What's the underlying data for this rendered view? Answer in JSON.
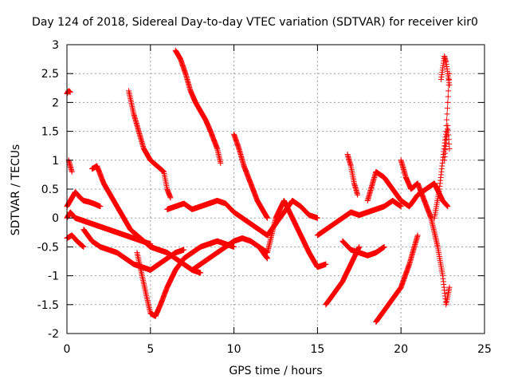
{
  "chart_data": {
    "type": "scatter",
    "title": "Day 124 of 2018, Sidereal Day-to-day VTEC variation (SDTVAR) for receiver kir0",
    "xlabel": "GPS time / hours",
    "ylabel": "SDTVAR / TECUs",
    "xlim": [
      0,
      25
    ],
    "ylim": [
      -2,
      3
    ],
    "xticks": [
      0,
      5,
      10,
      15,
      20,
      25
    ],
    "yticks": [
      -2,
      -1.5,
      -1,
      -0.5,
      0,
      0.5,
      1,
      1.5,
      2,
      2.5,
      3
    ],
    "grid": true,
    "marker": "plus",
    "color": "#ff0000",
    "series": [
      {
        "x": [
          0.0,
          0.1,
          0.2
        ],
        "values": [
          2.15,
          2.2,
          2.18
        ]
      },
      {
        "x": [
          0.0,
          0.2,
          0.5,
          0.8,
          1.0,
          1.3,
          1.6,
          2.0
        ],
        "values": [
          0.2,
          0.3,
          0.45,
          0.35,
          0.3,
          0.28,
          0.25,
          0.2
        ]
      },
      {
        "x": [
          0.0,
          0.3,
          0.6,
          1.0
        ],
        "values": [
          -0.35,
          -0.3,
          -0.4,
          -0.5
        ]
      },
      {
        "x": [
          0.0,
          0.2,
          0.5,
          1.0,
          1.5,
          2.0,
          2.5,
          3.0,
          3.5,
          4.0,
          4.5,
          5.0
        ],
        "values": [
          0.0,
          0.1,
          0.0,
          -0.05,
          -0.1,
          -0.15,
          -0.2,
          -0.25,
          -0.3,
          -0.35,
          -0.4,
          -0.45
        ]
      },
      {
        "x": [
          0.1,
          0.2,
          0.3
        ],
        "values": [
          1.0,
          0.9,
          0.8
        ]
      },
      {
        "x": [
          1.5,
          1.8,
          2.2,
          2.6,
          3.0,
          3.4,
          3.8,
          4.2,
          4.6,
          5.0,
          5.5,
          6.0,
          6.5,
          7.0,
          7.5,
          8.0
        ],
        "values": [
          0.85,
          0.9,
          0.6,
          0.4,
          0.2,
          0.0,
          -0.2,
          -0.3,
          -0.4,
          -0.5,
          -0.55,
          -0.6,
          -0.7,
          -0.8,
          -0.9,
          -0.95
        ]
      },
      {
        "x": [
          1.0,
          1.5,
          2.0,
          2.5,
          3.0,
          3.5,
          4.0,
          4.5,
          5.0,
          5.5,
          6.0,
          6.5,
          7.0
        ],
        "values": [
          -0.2,
          -0.4,
          -0.5,
          -0.55,
          -0.6,
          -0.7,
          -0.8,
          -0.85,
          -0.9,
          -0.8,
          -0.7,
          -0.6,
          -0.55
        ]
      },
      {
        "x": [
          3.7,
          4.0,
          4.3,
          4.6,
          5.0,
          5.4,
          5.8,
          6.0,
          6.2
        ],
        "values": [
          2.2,
          1.8,
          1.5,
          1.2,
          1.0,
          0.9,
          0.8,
          0.5,
          0.35
        ]
      },
      {
        "x": [
          4.2,
          4.5,
          4.8,
          5.0,
          5.3,
          5.6,
          6.0,
          6.5,
          7.0,
          7.5,
          8.0,
          8.5,
          9.0,
          9.5,
          10.0
        ],
        "values": [
          -0.6,
          -1.0,
          -1.4,
          -1.65,
          -1.7,
          -1.5,
          -1.2,
          -0.9,
          -0.7,
          -0.6,
          -0.5,
          -0.45,
          -0.4,
          -0.45,
          -0.5
        ]
      },
      {
        "x": [
          6.5,
          6.8,
          7.1,
          7.4,
          7.7,
          8.0,
          8.3,
          8.6,
          9.0,
          9.2
        ],
        "values": [
          2.9,
          2.75,
          2.5,
          2.2,
          2.0,
          1.85,
          1.7,
          1.5,
          1.2,
          0.95
        ]
      },
      {
        "x": [
          6.0,
          6.5,
          7.0,
          7.5,
          8.0,
          8.5,
          9.0,
          9.5,
          10.0,
          10.5,
          11.0,
          11.5,
          12.0,
          12.5,
          13.0,
          13.5,
          14.0,
          14.5,
          15.0
        ],
        "values": [
          0.15,
          0.2,
          0.25,
          0.15,
          0.2,
          0.25,
          0.3,
          0.25,
          0.1,
          0.0,
          -0.1,
          -0.2,
          -0.3,
          -0.1,
          0.1,
          0.3,
          0.2,
          0.05,
          0.0
        ]
      },
      {
        "x": [
          7.5,
          8.0,
          8.5,
          9.0,
          9.5,
          10.0,
          10.5,
          11.0,
          11.5,
          12.0
        ],
        "values": [
          -0.9,
          -0.8,
          -0.7,
          -0.6,
          -0.5,
          -0.4,
          -0.35,
          -0.4,
          -0.5,
          -0.7
        ]
      },
      {
        "x": [
          10.0,
          10.3,
          10.6,
          11.0,
          11.4,
          11.8,
          12.0
        ],
        "values": [
          1.45,
          1.2,
          0.9,
          0.6,
          0.3,
          0.1,
          0.0
        ]
      },
      {
        "x": [
          11.5,
          12.0,
          12.5,
          13.0,
          13.5,
          14.0,
          14.5,
          15.0,
          15.5
        ],
        "values": [
          -0.5,
          -0.6,
          0.0,
          0.3,
          0.0,
          -0.3,
          -0.6,
          -0.85,
          -0.8
        ]
      },
      {
        "x": [
          15.0,
          15.5,
          16.0,
          16.5,
          17.0,
          17.5,
          18.0,
          18.5,
          19.0,
          19.5,
          20.0
        ],
        "values": [
          -0.3,
          -0.2,
          -0.1,
          0.0,
          0.1,
          0.05,
          0.1,
          0.15,
          0.2,
          0.3,
          0.2
        ]
      },
      {
        "x": [
          15.5,
          16.0,
          16.5,
          17.0,
          17.5
        ],
        "values": [
          -1.5,
          -1.3,
          -1.1,
          -0.8,
          -0.5
        ]
      },
      {
        "x": [
          16.5,
          17.0,
          17.5,
          18.0,
          18.5,
          19.0
        ],
        "values": [
          -0.4,
          -0.55,
          -0.6,
          -0.65,
          -0.6,
          -0.5
        ]
      },
      {
        "x": [
          16.8,
          17.0,
          17.2,
          17.4
        ],
        "values": [
          1.1,
          0.9,
          0.6,
          0.4
        ]
      },
      {
        "x": [
          18.0,
          18.5,
          19.0,
          19.5,
          20.0,
          20.5,
          21.0,
          21.5,
          22.0,
          22.5,
          22.8
        ],
        "values": [
          0.3,
          0.8,
          0.7,
          0.5,
          0.3,
          0.2,
          0.4,
          0.5,
          0.6,
          0.3,
          0.2
        ]
      },
      {
        "x": [
          18.5,
          19.0,
          19.5,
          20.0,
          20.5,
          21.0
        ],
        "values": [
          -1.8,
          -1.6,
          -1.4,
          -1.2,
          -0.8,
          -0.3
        ]
      },
      {
        "x": [
          20.0,
          20.3,
          20.6,
          21.0,
          21.4,
          21.8,
          22.2,
          22.5,
          22.7,
          22.9
        ],
        "values": [
          1.0,
          0.7,
          0.5,
          0.6,
          0.3,
          0.0,
          -0.5,
          -1.0,
          -1.5,
          -1.2
        ]
      },
      {
        "x": [
          22.0,
          22.3,
          22.5,
          22.7,
          22.8,
          22.9
        ],
        "values": [
          0.0,
          0.5,
          1.0,
          1.5,
          2.0,
          2.5
        ]
      },
      {
        "x": [
          22.4,
          22.5,
          22.6,
          22.7,
          22.8,
          22.9
        ],
        "values": [
          2.4,
          2.6,
          2.8,
          2.7,
          2.5,
          2.3
        ]
      },
      {
        "x": [
          22.6,
          22.7,
          22.8,
          22.9
        ],
        "values": [
          1.0,
          1.3,
          1.6,
          1.2
        ]
      }
    ]
  }
}
